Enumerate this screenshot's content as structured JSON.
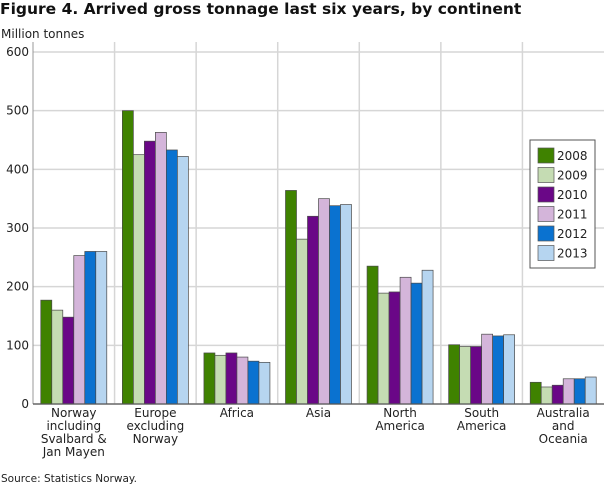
{
  "chart_data": {
    "type": "bar",
    "title": "Figure 4. Arrived gross tonnage last six years, by continent",
    "ylabel": "Million tonnes",
    "source": "Source: Statistics Norway.",
    "ylim": [
      0,
      600
    ],
    "yticks": [
      0,
      100,
      200,
      300,
      400,
      500,
      600
    ],
    "grid": true,
    "legend_placement": "right",
    "categories": [
      [
        "Norway",
        "including",
        "Svalbard &",
        "Jan Mayen"
      ],
      [
        "Europe",
        "excluding",
        "Norway"
      ],
      [
        "Africa"
      ],
      [
        "Asia"
      ],
      [
        "North",
        "America"
      ],
      [
        "South",
        "America"
      ],
      [
        "Australia",
        "and",
        "Oceania"
      ]
    ],
    "series": [
      {
        "name": "2008",
        "color": "#3f8200",
        "values": [
          177,
          500,
          87,
          364,
          235,
          101,
          37
        ]
      },
      {
        "name": "2009",
        "color": "#c5dcb3",
        "values": [
          160,
          425,
          83,
          281,
          189,
          98,
          29
        ]
      },
      {
        "name": "2010",
        "color": "#6a0787",
        "values": [
          148,
          448,
          87,
          320,
          191,
          98,
          32
        ]
      },
      {
        "name": "2011",
        "color": "#d4b5da",
        "values": [
          253,
          463,
          80,
          350,
          216,
          119,
          43
        ]
      },
      {
        "name": "2012",
        "color": "#0a72d0",
        "values": [
          260,
          433,
          73,
          338,
          206,
          116,
          43
        ]
      },
      {
        "name": "2013",
        "color": "#b6d5f0",
        "values": [
          260,
          422,
          71,
          340,
          228,
          118,
          46
        ]
      }
    ]
  }
}
